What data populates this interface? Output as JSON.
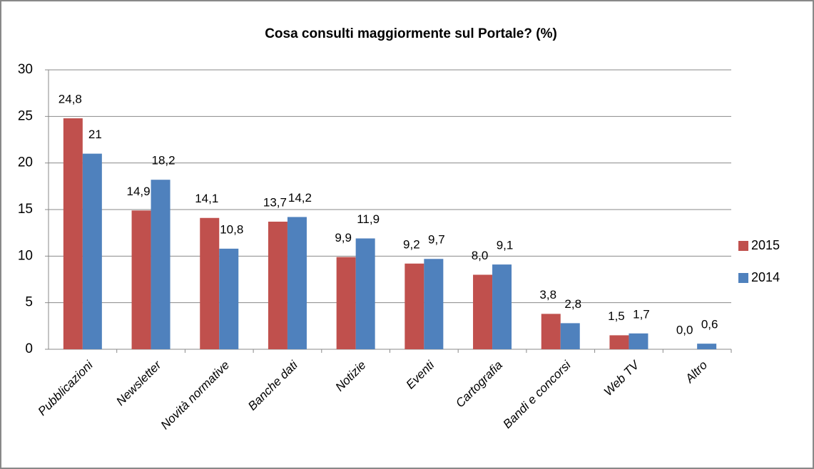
{
  "chart_data": {
    "type": "bar",
    "title": "Cosa consulti maggiormente sul Portale? (%)",
    "categories": [
      "Pubblicazioni",
      "Newsletter",
      "Novità normative",
      "Banche dati",
      "Notizie",
      "Eventi",
      "Cartografia",
      "Bandi e concorsi",
      "Web TV",
      "Altro"
    ],
    "series": [
      {
        "name": "2015",
        "color": "#c0504d",
        "values": [
          24.8,
          14.9,
          14.1,
          13.7,
          9.9,
          9.2,
          8.0,
          3.8,
          1.5,
          0.0
        ],
        "value_labels": [
          "24,8",
          "14,9",
          "14,1",
          "13,7",
          "9,9",
          "9,2",
          "8,0",
          "3,8",
          "1,5",
          "0,0"
        ]
      },
      {
        "name": "2014",
        "color": "#4f81bd",
        "values": [
          21,
          18.2,
          10.8,
          14.2,
          11.9,
          9.7,
          9.1,
          2.8,
          1.7,
          0.6
        ],
        "value_labels": [
          "21",
          "18,2",
          "10,8",
          "14,2",
          "11,9",
          "9,7",
          "9,1",
          "2,8",
          "1,7",
          "0,6"
        ]
      }
    ],
    "ylim": [
      0,
      30
    ],
    "yticks": [
      0,
      5,
      10,
      15,
      20,
      25,
      30
    ],
    "grid": true,
    "legend": "right"
  }
}
